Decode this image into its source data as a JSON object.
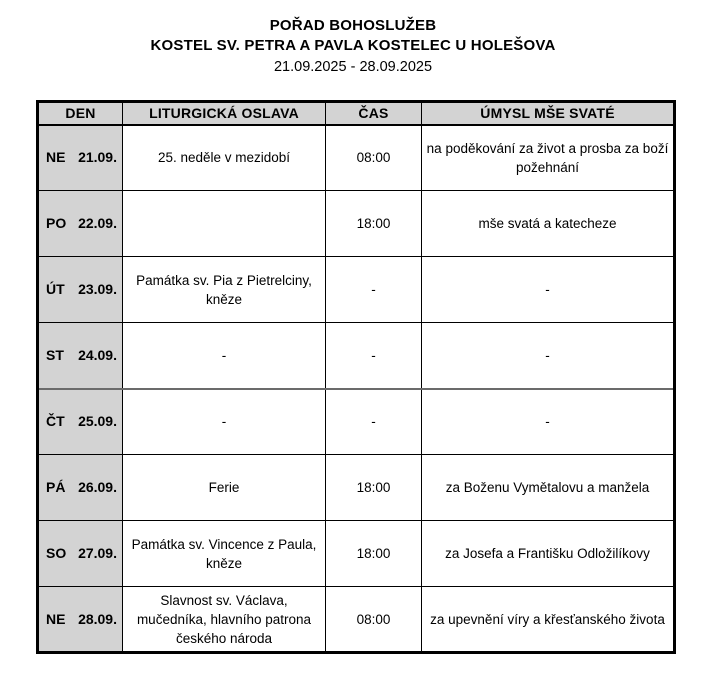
{
  "title": {
    "line1": "POŘAD BOHOSLUŽEB",
    "line2": "KOSTEL SV. PETRA A PAVLA KOSTELEC U HOLEŠOVA",
    "line3": "21.09.2025 - 28.09.2025"
  },
  "table": {
    "headers": [
      "DEN",
      "LITURGICKÁ OSLAVA",
      "ČAS",
      "ÚMYSL MŠE SVATÉ"
    ],
    "rows": [
      {
        "day": "NE",
        "date": "21.09.",
        "celebration": "25. neděle v mezidobí",
        "time": "08:00",
        "intention": "na poděkování za život a prosba za boží požehnání"
      },
      {
        "day": "PO",
        "date": "22.09.",
        "celebration": "",
        "time": "18:00",
        "intention": "mše svatá a katecheze"
      },
      {
        "day": "ÚT",
        "date": "23.09.",
        "celebration": "Památka sv. Pia z Pietrelciny, kněze",
        "time": "-",
        "intention": "-"
      },
      {
        "day": "ST",
        "date": "24.09.",
        "celebration": "-",
        "time": "-",
        "intention": "-"
      },
      {
        "day": "ČT",
        "date": "25.09.",
        "celebration": "-",
        "time": "-",
        "intention": "-"
      },
      {
        "day": "PÁ",
        "date": "26.09.",
        "celebration": "Ferie",
        "time": "18:00",
        "intention": "za Boženu Vymětalovu a manžela"
      },
      {
        "day": "SO",
        "date": "27.09.",
        "celebration": "Památka sv. Vincence z Paula, kněze",
        "time": "18:00",
        "intention": "za Josefa a Františku Odložilíkovy"
      },
      {
        "day": "NE",
        "date": "28.09.",
        "celebration": "Slavnost sv. Václava, mučedníka, hlavního patrona českého národa",
        "time": "08:00",
        "intention": "za upevnění víry a křesťanského života"
      }
    ]
  },
  "colors": {
    "header_bg": "#d3d3d3",
    "day_col_bg": "#d3d3d3",
    "border": "#000000",
    "section_divider": "#6b6b6b"
  }
}
